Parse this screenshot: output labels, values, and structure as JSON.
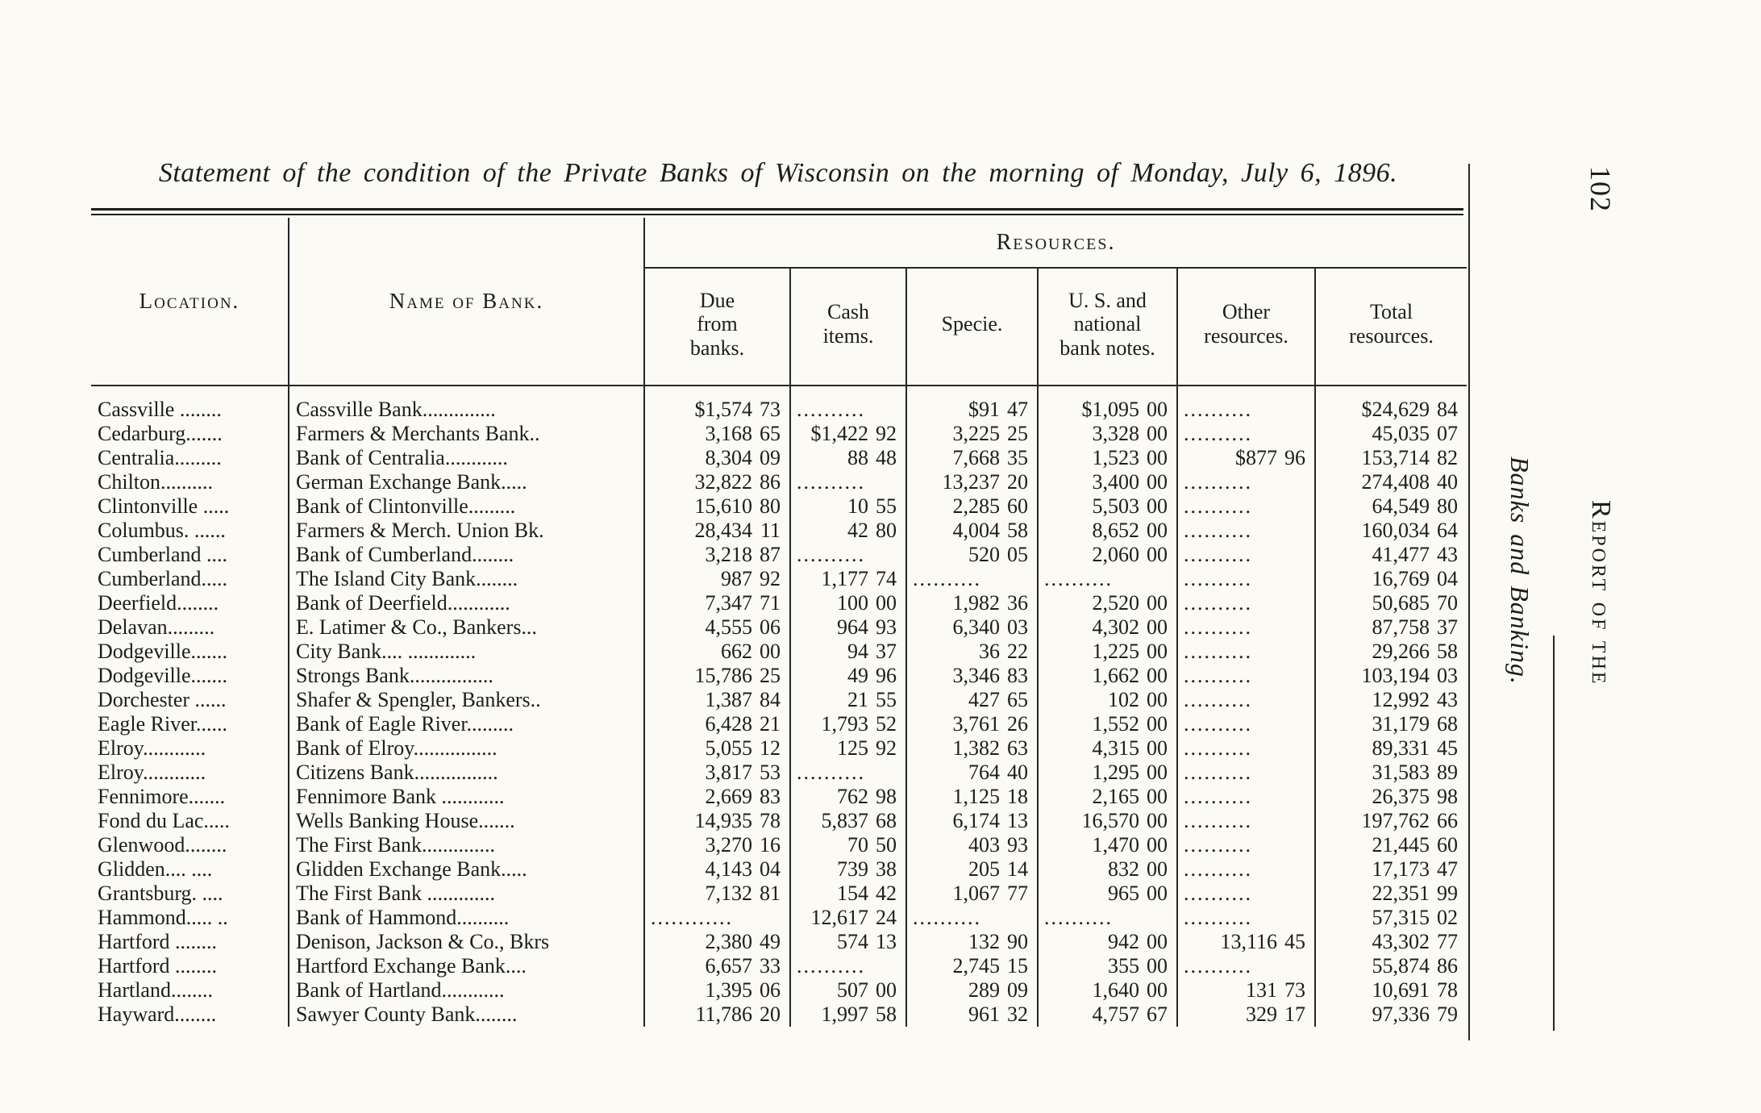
{
  "page": {
    "title": "Statement of the condition of the Private Banks of Wisconsin on the morning of Monday, July 6, 1896.",
    "page_number": "102",
    "side_title_italic": "Banks and Banking.",
    "side_title_caps": "Report of the"
  },
  "table": {
    "group_header": "Resources.",
    "col_location": "Location.",
    "col_bank": "Name of Bank.",
    "resource_columns": [
      "Due\nfrom\nbanks.",
      "Cash\nitems.",
      "Specie.",
      "U. S. and\nnational\nbank notes.",
      "Other\nresources.",
      "Total\nresources."
    ],
    "rows": [
      {
        "location": "Cassville ........",
        "bank": "Cassville Bank..............",
        "due": "$1,574 73",
        "cash": "..........",
        "specie": "$91 47",
        "notes": "$1,095 00",
        "other": "..........",
        "total": "$24,629 84"
      },
      {
        "location": "Cedarburg.......",
        "bank": "Farmers & Merchants Bank..",
        "due": "3,168 65",
        "cash": "$1,422 92",
        "specie": "3,225 25",
        "notes": "3,328 00",
        "other": "..........",
        "total": "45,035 07"
      },
      {
        "location": "Centralia.........",
        "bank": "Bank of Centralia............",
        "due": "8,304 09",
        "cash": "88 48",
        "specie": "7,668 35",
        "notes": "1,523 00",
        "other": "$877 96",
        "total": "153,714 82"
      },
      {
        "location": "Chilton..........",
        "bank": "German Exchange Bank.....",
        "due": "32,822 86",
        "cash": "..........",
        "specie": "13,237 20",
        "notes": "3,400 00",
        "other": "..........",
        "total": "274,408 40"
      },
      {
        "location": "Clintonville .....",
        "bank": "Bank of Clintonville.........",
        "due": "15,610 80",
        "cash": "10 55",
        "specie": "2,285 60",
        "notes": "5,503 00",
        "other": "..........",
        "total": "64,549 80"
      },
      {
        "location": "Columbus. ......",
        "bank": "Farmers & Merch. Union Bk.",
        "due": "28,434 11",
        "cash": "42 80",
        "specie": "4,004 58",
        "notes": "8,652 00",
        "other": "..........",
        "total": "160,034 64"
      },
      {
        "location": "Cumberland ....",
        "bank": "Bank of Cumberland........",
        "due": "3,218 87",
        "cash": "..........",
        "specie": "520 05",
        "notes": "2,060 00",
        "other": "..........",
        "total": "41,477 43"
      },
      {
        "location": "Cumberland.....",
        "bank": "The Island City Bank........",
        "due": "987 92",
        "cash": "1,177 74",
        "specie": "..........",
        "notes": "..........",
        "other": "..........",
        "total": "16,769 04"
      },
      {
        "location": "Deerfield........",
        "bank": "Bank of Deerfield............",
        "due": "7,347 71",
        "cash": "100 00",
        "specie": "1,982 36",
        "notes": "2,520 00",
        "other": "..........",
        "total": "50,685 70"
      },
      {
        "location": "Delavan.........",
        "bank": "E. Latimer & Co., Bankers...",
        "due": "4,555 06",
        "cash": "964 93",
        "specie": "6,340 03",
        "notes": "4,302 00",
        "other": "..........",
        "total": "87,758 37"
      },
      {
        "location": "Dodgeville.......",
        "bank": "City Bank.... .............",
        "due": "662 00",
        "cash": "94 37",
        "specie": "36 22",
        "notes": "1,225 00",
        "other": "..........",
        "total": "29,266 58"
      },
      {
        "location": "Dodgeville.......",
        "bank": "Strongs Bank................",
        "due": "15,786 25",
        "cash": "49 96",
        "specie": "3,346 83",
        "notes": "1,662 00",
        "other": "..........",
        "total": "103,194 03"
      },
      {
        "location": "Dorchester ......",
        "bank": "Shafer & Spengler, Bankers..",
        "due": "1,387 84",
        "cash": "21 55",
        "specie": "427 65",
        "notes": "102 00",
        "other": "..........",
        "total": "12,992 43"
      },
      {
        "location": "Eagle River......",
        "bank": "Bank of Eagle River.........",
        "due": "6,428 21",
        "cash": "1,793 52",
        "specie": "3,761 26",
        "notes": "1,552 00",
        "other": "..........",
        "total": "31,179 68"
      },
      {
        "location": "Elroy............",
        "bank": "Bank of Elroy................",
        "due": "5,055 12",
        "cash": "125 92",
        "specie": "1,382 63",
        "notes": "4,315 00",
        "other": "..........",
        "total": "89,331 45"
      },
      {
        "location": "Elroy............",
        "bank": "Citizens Bank................",
        "due": "3,817 53",
        "cash": "..........",
        "specie": "764 40",
        "notes": "1,295 00",
        "other": "..........",
        "total": "31,583 89"
      },
      {
        "location": "Fennimore.......",
        "bank": "Fennimore Bank ............",
        "due": "2,669 83",
        "cash": "762 98",
        "specie": "1,125 18",
        "notes": "2,165 00",
        "other": "..........",
        "total": "26,375 98"
      },
      {
        "location": "Fond du Lac.....",
        "bank": "Wells Banking House.......",
        "due": "14,935 78",
        "cash": "5,837 68",
        "specie": "6,174 13",
        "notes": "16,570 00",
        "other": "..........",
        "total": "197,762 66"
      },
      {
        "location": "Glenwood........",
        "bank": "The First Bank..............",
        "due": "3,270 16",
        "cash": "70 50",
        "specie": "403 93",
        "notes": "1,470 00",
        "other": "..........",
        "total": "21,445 60"
      },
      {
        "location": "Glidden.... ....",
        "bank": "Glidden Exchange Bank.....",
        "due": "4,143 04",
        "cash": "739 38",
        "specie": "205 14",
        "notes": "832 00",
        "other": "..........",
        "total": "17,173 47"
      },
      {
        "location": "Grantsburg. ....",
        "bank": "The First Bank .............",
        "due": "7,132 81",
        "cash": "154 42",
        "specie": "1,067 77",
        "notes": "965 00",
        "other": "..........",
        "total": "22,351 99"
      },
      {
        "location": "Hammond..... ..",
        "bank": "Bank of Hammond..........",
        "due": "............",
        "cash": "12,617 24",
        "specie": "..........",
        "notes": "..........",
        "other": "..........",
        "total": "57,315 02"
      },
      {
        "location": "Hartford ........",
        "bank": "Denison, Jackson & Co., Bkrs",
        "due": "2,380 49",
        "cash": "574 13",
        "specie": "132 90",
        "notes": "942 00",
        "other": "13,116 45",
        "total": "43,302 77"
      },
      {
        "location": "Hartford ........",
        "bank": "Hartford Exchange Bank....",
        "due": "6,657 33",
        "cash": "..........",
        "specie": "2,745 15",
        "notes": "355 00",
        "other": "..........",
        "total": "55,874 86"
      },
      {
        "location": "Hartland........",
        "bank": "Bank of Hartland............",
        "due": "1,395 06",
        "cash": "507 00",
        "specie": "289 09",
        "notes": "1,640 00",
        "other": "131 73",
        "total": "10,691 78"
      },
      {
        "location": "Hayward........",
        "bank": "Sawyer County Bank........",
        "due": "11,786 20",
        "cash": "1,997 58",
        "specie": "961 32",
        "notes": "4,757 67",
        "other": "329 17",
        "total": "97,336 79"
      }
    ]
  }
}
